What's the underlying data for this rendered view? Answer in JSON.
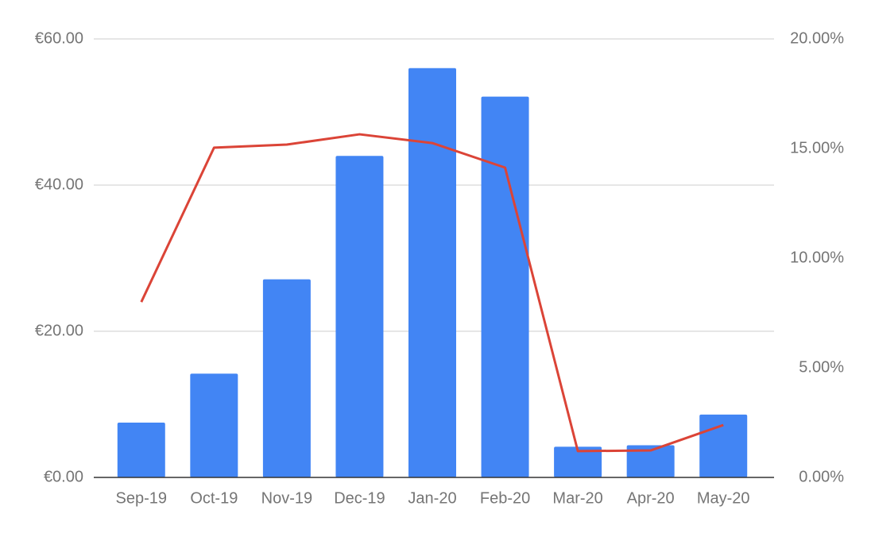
{
  "chart_data": {
    "type": "combo",
    "categories": [
      "Sep-19",
      "Oct-19",
      "Nov-19",
      "Dec-19",
      "Jan-20",
      "Feb-20",
      "Mar-20",
      "Apr-20",
      "May-20"
    ],
    "series": [
      {
        "type": "bar",
        "color": "#4285f4",
        "values": [
          7.5,
          14.2,
          27.1,
          44.0,
          56.0,
          52.1,
          4.2,
          4.4,
          8.6
        ]
      },
      {
        "type": "line",
        "axis": "y2",
        "color": "#db4437",
        "values": [
          8.0,
          15.04,
          15.18,
          15.65,
          15.25,
          14.13,
          1.2,
          1.23,
          2.39
        ]
      }
    ],
    "ylim": [
      0,
      60
    ],
    "yticks": [
      {
        "value": 0,
        "label": "€0.00"
      },
      {
        "value": 20,
        "label": "€20.00"
      },
      {
        "value": 40,
        "label": "€40.00"
      },
      {
        "value": 60,
        "label": "€60.00"
      }
    ],
    "y2lim": [
      0,
      20
    ],
    "y2ticks": [
      {
        "value": 0,
        "label": "0.00%"
      },
      {
        "value": 5,
        "label": "5.00%"
      },
      {
        "value": 10,
        "label": "10.00%"
      },
      {
        "value": 15,
        "label": "15.00%"
      },
      {
        "value": 20,
        "label": "20.00%"
      }
    ],
    "grid": true
  }
}
